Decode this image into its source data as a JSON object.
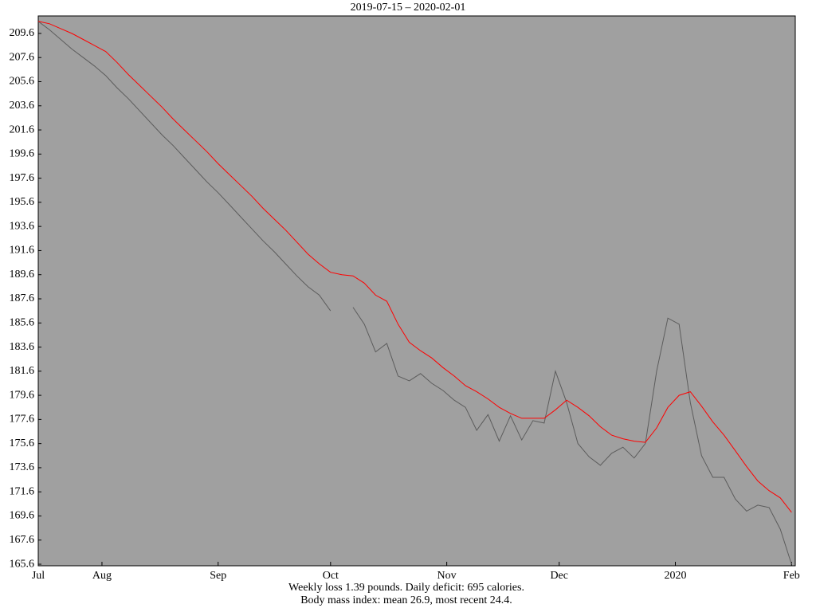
{
  "chart_data": {
    "type": "line",
    "title": "2019-07-15 – 2020-02-01",
    "annotations": [
      "Weekly loss 1.39 pounds.  Daily deficit:  695 calories.",
      "Body mass index: mean 26.9, most recent 24.4."
    ],
    "x": [
      0,
      3,
      6,
      9,
      12,
      15,
      18,
      21,
      24,
      27,
      30,
      33,
      36,
      39,
      42,
      45,
      48,
      51,
      54,
      57,
      60,
      63,
      66,
      69,
      72,
      75,
      78,
      81,
      84,
      87,
      90,
      93,
      96,
      99,
      102,
      105,
      108,
      111,
      114,
      117,
      120,
      123,
      126,
      129,
      132,
      135,
      138,
      141,
      144,
      147,
      150,
      153,
      156,
      159,
      162,
      165,
      168,
      171,
      174,
      177,
      180,
      183,
      186,
      189,
      192,
      195,
      198,
      201
    ],
    "series": [
      {
        "color": "#5c5c5c",
        "values": [
          210.6,
          209.9,
          209.1,
          208.3,
          207.6,
          206.9,
          206.1,
          205.1,
          204.2,
          203.2,
          202.2,
          201.2,
          200.3,
          199.3,
          198.3,
          197.3,
          196.4,
          195.4,
          194.4,
          193.4,
          192.4,
          191.5,
          190.5,
          189.5,
          188.6,
          187.9,
          186.6,
          null,
          186.9,
          185.5,
          183.2,
          183.9,
          181.2,
          180.8,
          181.4,
          180.6,
          180.0,
          179.2,
          178.6,
          176.7,
          178.0,
          175.8,
          177.9,
          175.9,
          177.5,
          177.3,
          181.6,
          179.0,
          175.6,
          174.5,
          173.8,
          174.8,
          175.3,
          174.4,
          175.6,
          181.6,
          186.0,
          185.5,
          179.0,
          174.6,
          172.8,
          172.8,
          171.0,
          170.0,
          170.5,
          170.3,
          168.5,
          165.6
        ]
      },
      {
        "color": "#ff0000",
        "values": [
          210.6,
          210.4,
          210.0,
          209.6,
          209.1,
          208.6,
          208.1,
          207.2,
          206.2,
          205.3,
          204.4,
          203.5,
          202.5,
          201.6,
          200.7,
          199.8,
          198.8,
          197.9,
          197.0,
          196.1,
          195.1,
          194.2,
          193.3,
          192.3,
          191.3,
          190.5,
          189.8,
          189.6,
          189.5,
          188.9,
          187.9,
          187.4,
          185.5,
          184.0,
          183.3,
          182.7,
          181.9,
          181.2,
          180.4,
          179.9,
          179.3,
          178.6,
          178.1,
          177.7,
          177.7,
          177.7,
          178.4,
          179.2,
          178.6,
          177.9,
          177.0,
          176.3,
          176.0,
          175.8,
          175.7,
          176.9,
          178.6,
          179.6,
          179.9,
          178.7,
          177.4,
          176.3,
          175.0,
          173.7,
          172.5,
          171.7,
          171.1,
          169.9
        ]
      }
    ],
    "xlim": [
      0,
      202
    ],
    "xticks": [
      {
        "value": 0,
        "label": "Jul"
      },
      {
        "value": 17,
        "label": "Aug"
      },
      {
        "value": 48,
        "label": "Sep"
      },
      {
        "value": 78,
        "label": "Oct"
      },
      {
        "value": 109,
        "label": "Nov"
      },
      {
        "value": 139,
        "label": "Dec"
      },
      {
        "value": 170,
        "label": "2020"
      },
      {
        "value": 201,
        "label": "Feb"
      }
    ],
    "ylim": [
      165.47,
      211.05
    ],
    "yticks": [
      165.6,
      167.6,
      169.6,
      171.6,
      173.6,
      175.6,
      177.6,
      179.6,
      181.6,
      183.6,
      185.6,
      187.6,
      189.6,
      191.6,
      193.6,
      195.6,
      197.6,
      199.6,
      201.6,
      203.6,
      205.6,
      207.6,
      209.6
    ],
    "plot_background": "#a0a0a0"
  }
}
